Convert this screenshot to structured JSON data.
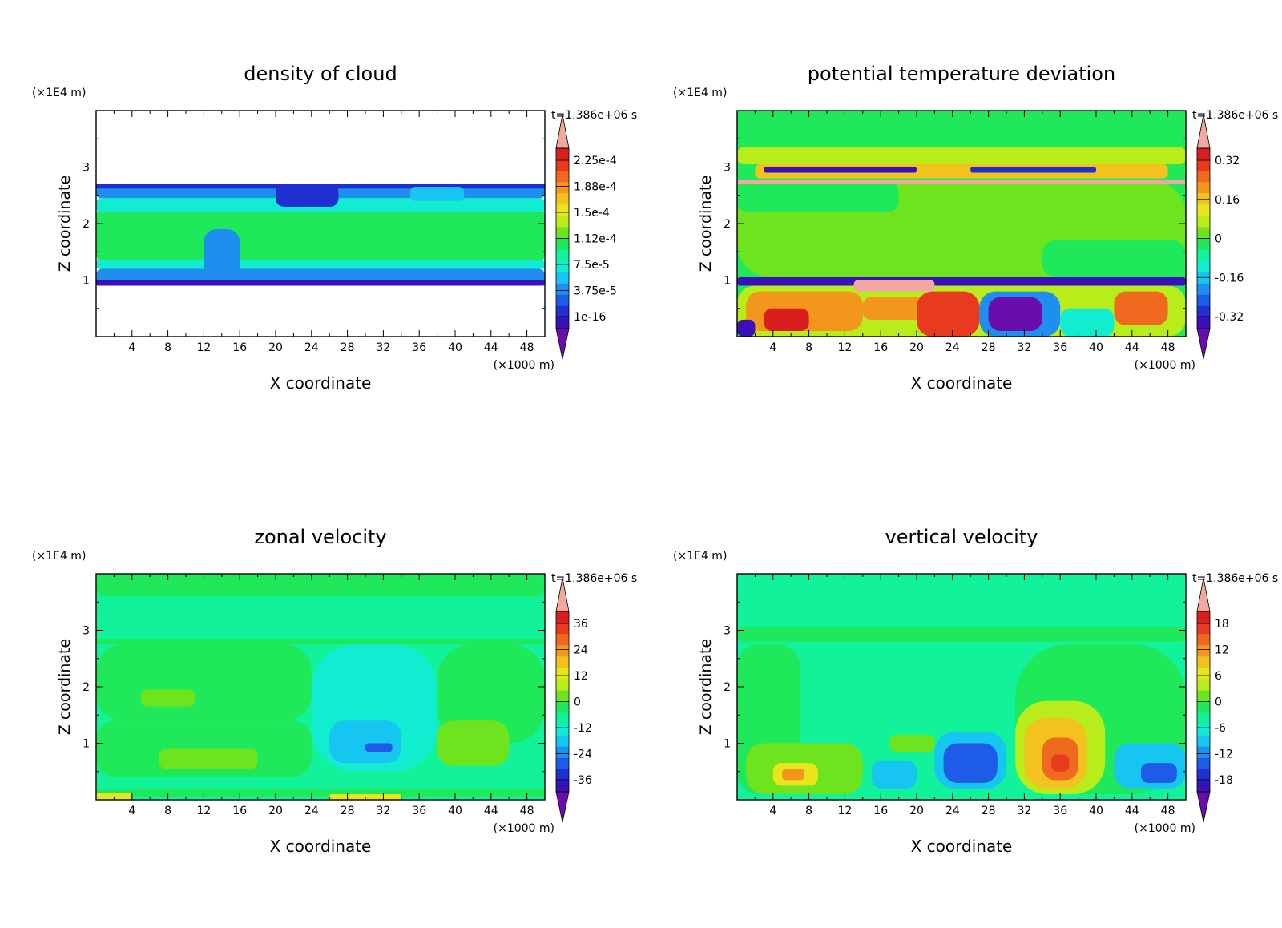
{
  "palette": [
    "#6a0dad",
    "#3a10b8",
    "#1f2fd0",
    "#1e5be6",
    "#1e8fee",
    "#17c6f0",
    "#12ecd0",
    "#12f29a",
    "#1fe85a",
    "#6ee41e",
    "#b8ec1a",
    "#e6e61e",
    "#f2c21e",
    "#f2961e",
    "#ef6a1e",
    "#e83a1e",
    "#d81e1e",
    "#f0a8a0"
  ],
  "chart_data": [
    {
      "type": "heatmap",
      "title": "density of cloud",
      "xlabel": "X coordinate",
      "ylabel": "Z coordinate",
      "x_unit": "(×1000 m)",
      "y_unit": "(×1E4 m)",
      "time_label": "t=1.386e+06 s",
      "xlim": [
        0,
        50
      ],
      "ylim": [
        0,
        4
      ],
      "x_ticks": [
        "4",
        "8",
        "12",
        "16",
        "20",
        "24",
        "28",
        "32",
        "36",
        "40",
        "44",
        "48"
      ],
      "y_ticks": [
        "1",
        "2",
        "3"
      ],
      "colorbar_labels": [
        "2.25e-4",
        "1.88e-4",
        "1.5e-4",
        "1.12e-4",
        "7.5e-5",
        "3.75e-5",
        "1e-16"
      ],
      "regions": [
        {
          "x0": 0,
          "x1": 50,
          "y0": 0.9,
          "y1": 2.7,
          "level": 8
        },
        {
          "x0": 0,
          "x1": 50,
          "y0": 0.9,
          "y1": 1.2,
          "level": 4
        },
        {
          "x0": 0,
          "x1": 50,
          "y0": 0.9,
          "y1": 1.0,
          "level": 1
        },
        {
          "x0": 0,
          "x1": 50,
          "y0": 2.45,
          "y1": 2.7,
          "level": 4
        },
        {
          "x0": 0,
          "x1": 50,
          "y0": 2.62,
          "y1": 2.7,
          "level": 2
        },
        {
          "x0": 0,
          "x1": 50,
          "y0": 1.2,
          "y1": 1.35,
          "level": 6
        },
        {
          "x0": 0,
          "x1": 50,
          "y0": 2.2,
          "y1": 2.45,
          "level": 6
        },
        {
          "x0": 12,
          "x1": 16,
          "y0": 1.0,
          "y1": 1.9,
          "level": 4
        },
        {
          "x0": 20,
          "x1": 27,
          "y0": 2.3,
          "y1": 2.7,
          "level": 2
        },
        {
          "x0": 35,
          "x1": 41,
          "y0": 2.4,
          "y1": 2.65,
          "level": 5
        }
      ]
    },
    {
      "type": "heatmap",
      "title": "potential temperature deviation",
      "xlabel": "X coordinate",
      "ylabel": "Z coordinate",
      "x_unit": "(×1000 m)",
      "y_unit": "(×1E4 m)",
      "time_label": "t=1.386e+06 s",
      "xlim": [
        0,
        50
      ],
      "ylim": [
        0,
        4
      ],
      "x_ticks": [
        "4",
        "8",
        "12",
        "16",
        "20",
        "24",
        "28",
        "32",
        "36",
        "40",
        "44",
        "48"
      ],
      "y_ticks": [
        "1",
        "2",
        "3"
      ],
      "colorbar_labels": [
        "0.32",
        "0.16",
        "0",
        "-0.16",
        "-0.32"
      ],
      "background_level": 8,
      "regions": [
        {
          "x0": 0,
          "x1": 50,
          "y0": 1.05,
          "y1": 2.75,
          "level": 9
        },
        {
          "x0": 0,
          "x1": 18,
          "y0": 2.2,
          "y1": 2.75,
          "level": 8
        },
        {
          "x0": 34,
          "x1": 50,
          "y0": 1.05,
          "y1": 1.7,
          "level": 8
        },
        {
          "x0": 0,
          "x1": 50,
          "y0": 3.05,
          "y1": 3.35,
          "level": 10
        },
        {
          "x0": 2,
          "x1": 48,
          "y0": 2.8,
          "y1": 3.05,
          "level": 12
        },
        {
          "x0": 3,
          "x1": 20,
          "y0": 2.9,
          "y1": 3.0,
          "level": 1
        },
        {
          "x0": 26,
          "x1": 40,
          "y0": 2.9,
          "y1": 3.0,
          "level": 2
        },
        {
          "x0": 0,
          "x1": 50,
          "y0": 2.7,
          "y1": 2.78,
          "level": 17
        },
        {
          "x0": 0,
          "x1": 50,
          "y0": 0.9,
          "y1": 1.05,
          "level": 1
        },
        {
          "x0": 0,
          "x1": 50,
          "y0": 0,
          "y1": 0.9,
          "level": 10
        },
        {
          "x0": 1,
          "x1": 14,
          "y0": 0.1,
          "y1": 0.8,
          "level": 13
        },
        {
          "x0": 3,
          "x1": 8,
          "y0": 0.1,
          "y1": 0.5,
          "level": 16
        },
        {
          "x0": 14,
          "x1": 24,
          "y0": 0.3,
          "y1": 0.7,
          "level": 13
        },
        {
          "x0": 20,
          "x1": 27,
          "y0": 0,
          "y1": 0.8,
          "level": 15
        },
        {
          "x0": 27,
          "x1": 36,
          "y0": 0,
          "y1": 0.8,
          "level": 4
        },
        {
          "x0": 28,
          "x1": 34,
          "y0": 0.1,
          "y1": 0.7,
          "level": 0
        },
        {
          "x0": 36,
          "x1": 42,
          "y0": 0,
          "y1": 0.5,
          "level": 6
        },
        {
          "x0": 42,
          "x1": 48,
          "y0": 0.2,
          "y1": 0.8,
          "level": 14
        },
        {
          "x0": 0,
          "x1": 2,
          "y0": 0,
          "y1": 0.3,
          "level": 1
        },
        {
          "x0": 13,
          "x1": 22,
          "y0": 0.8,
          "y1": 1.0,
          "level": 17
        }
      ]
    },
    {
      "type": "heatmap",
      "title": "zonal velocity",
      "xlabel": "X coordinate",
      "ylabel": "Z coordinate",
      "x_unit": "(×1000 m)",
      "y_unit": "(×1E4 m)",
      "time_label": "t=1.386e+06 s",
      "xlim": [
        0,
        50
      ],
      "ylim": [
        0,
        4
      ],
      "x_ticks": [
        "4",
        "8",
        "12",
        "16",
        "20",
        "24",
        "28",
        "32",
        "36",
        "40",
        "44",
        "48"
      ],
      "y_ticks": [
        "1",
        "2",
        "3"
      ],
      "colorbar_labels": [
        "36",
        "24",
        "12",
        "0",
        "-12",
        "-24",
        "-36"
      ],
      "background_level": 7,
      "regions": [
        {
          "x0": 0,
          "x1": 50,
          "y0": 2.75,
          "y1": 2.85,
          "level": 8
        },
        {
          "x0": 0,
          "x1": 50,
          "y0": 3.6,
          "y1": 4.0,
          "level": 8
        },
        {
          "x0": 0,
          "x1": 24,
          "y0": 1.4,
          "y1": 2.75,
          "level": 8
        },
        {
          "x0": 38,
          "x1": 50,
          "y0": 1.0,
          "y1": 2.75,
          "level": 8
        },
        {
          "x0": 5,
          "x1": 11,
          "y0": 1.65,
          "y1": 1.95,
          "level": 9
        },
        {
          "x0": 24,
          "x1": 38,
          "y0": 0.5,
          "y1": 2.75,
          "level": 6
        },
        {
          "x0": 26,
          "x1": 34,
          "y0": 0.65,
          "y1": 1.4,
          "level": 5
        },
        {
          "x0": 30,
          "x1": 33,
          "y0": 0.85,
          "y1": 1.0,
          "level": 3
        },
        {
          "x0": 0,
          "x1": 24,
          "y0": 0.4,
          "y1": 1.4,
          "level": 8
        },
        {
          "x0": 7,
          "x1": 18,
          "y0": 0.55,
          "y1": 0.9,
          "level": 9
        },
        {
          "x0": 38,
          "x1": 46,
          "y0": 0.6,
          "y1": 1.4,
          "level": 9
        },
        {
          "x0": 0,
          "x1": 50,
          "y0": 0.05,
          "y1": 0.2,
          "level": 8
        },
        {
          "x0": 0,
          "x1": 4,
          "y0": 0,
          "y1": 0.12,
          "level": 11
        },
        {
          "x0": 26,
          "x1": 34,
          "y0": 0,
          "y1": 0.1,
          "level": 11
        }
      ]
    },
    {
      "type": "heatmap",
      "title": "vertical velocity",
      "xlabel": "X coordinate",
      "ylabel": "Z coordinate",
      "x_unit": "(×1000 m)",
      "y_unit": "(×1E4 m)",
      "time_label": "t=1.386e+06 s",
      "xlim": [
        0,
        50
      ],
      "ylim": [
        0,
        4
      ],
      "x_ticks": [
        "4",
        "8",
        "12",
        "16",
        "20",
        "24",
        "28",
        "32",
        "36",
        "40",
        "44",
        "48"
      ],
      "y_ticks": [
        "1",
        "2",
        "3"
      ],
      "colorbar_labels": [
        "18",
        "12",
        "6",
        "0",
        "-6",
        "-12",
        "-18"
      ],
      "background_level": 7,
      "regions": [
        {
          "x0": 0,
          "x1": 7,
          "y0": 0.1,
          "y1": 2.75,
          "level": 8
        },
        {
          "x0": 31,
          "x1": 50,
          "y0": 0.1,
          "y1": 2.75,
          "level": 8
        },
        {
          "x0": 0,
          "x1": 50,
          "y0": 2.8,
          "y1": 3.05,
          "level": 8
        },
        {
          "x0": 1,
          "x1": 14,
          "y0": 0.1,
          "y1": 1.0,
          "level": 9
        },
        {
          "x0": 4,
          "x1": 9,
          "y0": 0.25,
          "y1": 0.65,
          "level": 11
        },
        {
          "x0": 5,
          "x1": 7.5,
          "y0": 0.35,
          "y1": 0.55,
          "level": 13
        },
        {
          "x0": 15,
          "x1": 20,
          "y0": 0.2,
          "y1": 0.7,
          "level": 5
        },
        {
          "x0": 17,
          "x1": 22,
          "y0": 0.85,
          "y1": 1.15,
          "level": 9
        },
        {
          "x0": 22,
          "x1": 30,
          "y0": 0.2,
          "y1": 1.2,
          "level": 5
        },
        {
          "x0": 23,
          "x1": 29,
          "y0": 0.3,
          "y1": 1.0,
          "level": 3
        },
        {
          "x0": 31,
          "x1": 41,
          "y0": 0.1,
          "y1": 1.75,
          "level": 10
        },
        {
          "x0": 32,
          "x1": 39,
          "y0": 0.2,
          "y1": 1.45,
          "level": 12
        },
        {
          "x0": 34,
          "x1": 38,
          "y0": 0.35,
          "y1": 1.1,
          "level": 14
        },
        {
          "x0": 35,
          "x1": 37,
          "y0": 0.5,
          "y1": 0.8,
          "level": 15
        },
        {
          "x0": 42,
          "x1": 50,
          "y0": 0.2,
          "y1": 1.0,
          "level": 5
        },
        {
          "x0": 45,
          "x1": 49,
          "y0": 0.3,
          "y1": 0.65,
          "level": 3
        }
      ]
    }
  ]
}
